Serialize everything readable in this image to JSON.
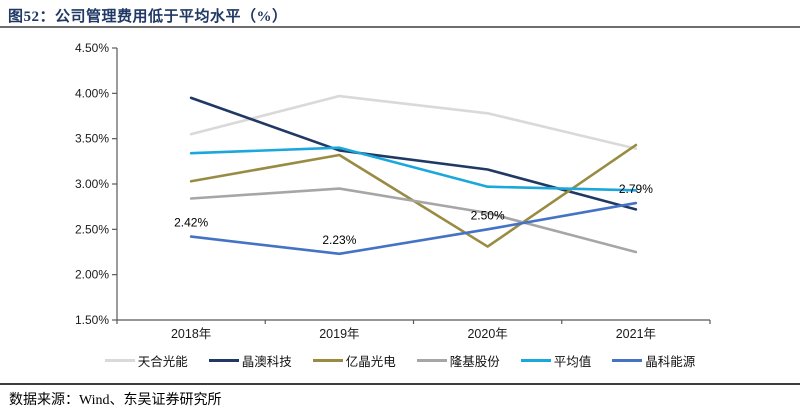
{
  "header": {
    "title": "图52：公司管理费用低于平均水平（%）"
  },
  "footer": {
    "source": "数据来源：Wind、东吴证券研究所"
  },
  "chart_data": {
    "type": "line",
    "title": "公司管理费用低于平均水平（%）",
    "categories": [
      "2018年",
      "2019年",
      "2020年",
      "2021年"
    ],
    "series": [
      {
        "name": "天合光能",
        "color": "#d9d9d9",
        "values": [
          3.55,
          3.97,
          3.78,
          3.39
        ]
      },
      {
        "name": "晶澳科技",
        "color": "#1f3864",
        "values": [
          3.95,
          3.37,
          3.16,
          2.72
        ]
      },
      {
        "name": "亿晶光电",
        "color": "#998c42",
        "values": [
          3.03,
          3.32,
          2.31,
          3.43
        ]
      },
      {
        "name": "隆基股份",
        "color": "#a6a6a6",
        "values": [
          2.84,
          2.95,
          2.68,
          2.25
        ]
      },
      {
        "name": "平均值",
        "color": "#1aa7dc",
        "values": [
          3.34,
          3.4,
          2.97,
          2.93
        ]
      },
      {
        "name": "晶科能源",
        "color": "#4472c4",
        "values": [
          2.42,
          2.23,
          2.5,
          2.79
        ]
      }
    ],
    "labeled_series": "晶科能源",
    "point_labels": [
      "2.42%",
      "2.23%",
      "2.50%",
      "2.79%"
    ],
    "ylim": [
      1.5,
      4.5
    ],
    "ytick_step": 0.5,
    "ytick_labels": [
      "1.50%",
      "2.00%",
      "2.50%",
      "3.00%",
      "3.50%",
      "4.00%",
      "4.50%"
    ],
    "grid": false,
    "legend_position": "bottom",
    "axis_color": "#595959"
  }
}
